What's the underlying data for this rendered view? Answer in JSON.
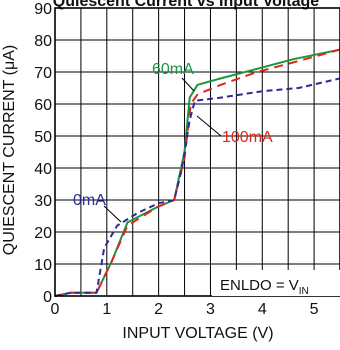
{
  "chart_data": {
    "type": "line",
    "title": "Quiescent Current vs Input Voltage",
    "xlabel": "INPUT VOLTAGE (V)",
    "ylabel": "QUIESCENT CURRENT (μA)",
    "xlim": [
      0,
      5.5
    ],
    "ylim": [
      0,
      90
    ],
    "xticks": [
      0,
      1,
      2,
      3,
      4,
      5
    ],
    "yticks": [
      0,
      10,
      20,
      30,
      40,
      50,
      60,
      70,
      80,
      90
    ],
    "grid": true,
    "condition": {
      "text": "ENLDO = V",
      "subscript": "IN"
    },
    "series": [
      {
        "name": "60mA",
        "color": "#1a9641",
        "dash": "solid",
        "points": [
          [
            0,
            0
          ],
          [
            0.3,
            1
          ],
          [
            0.8,
            1
          ],
          [
            1.1,
            11
          ],
          [
            1.4,
            23
          ],
          [
            2.0,
            28
          ],
          [
            2.3,
            30
          ],
          [
            2.5,
            45
          ],
          [
            2.6,
            62
          ],
          [
            2.75,
            66
          ],
          [
            3.2,
            68
          ],
          [
            3.9,
            71
          ],
          [
            4.6,
            74
          ],
          [
            5.5,
            77
          ]
        ]
      },
      {
        "name": "100mA",
        "color": "#e0271c",
        "dash": "long",
        "points": [
          [
            0,
            0
          ],
          [
            0.3,
            1
          ],
          [
            0.8,
            1
          ],
          [
            1.1,
            11
          ],
          [
            1.4,
            22
          ],
          [
            2.0,
            28
          ],
          [
            2.3,
            30
          ],
          [
            2.5,
            43
          ],
          [
            2.62,
            60
          ],
          [
            2.75,
            63
          ],
          [
            3.2,
            66
          ],
          [
            3.9,
            70
          ],
          [
            4.6,
            73
          ],
          [
            5.5,
            77
          ]
        ]
      },
      {
        "name": "0mA",
        "color": "#2b2b9a",
        "dash": "short",
        "points": [
          [
            0,
            0
          ],
          [
            0.3,
            1
          ],
          [
            0.8,
            1
          ],
          [
            0.95,
            15
          ],
          [
            1.2,
            22
          ],
          [
            1.6,
            26
          ],
          [
            2.0,
            29
          ],
          [
            2.3,
            30
          ],
          [
            2.45,
            40
          ],
          [
            2.6,
            55
          ],
          [
            2.7,
            61
          ],
          [
            3.2,
            62
          ],
          [
            4.0,
            64
          ],
          [
            4.7,
            65
          ],
          [
            5.5,
            68
          ]
        ]
      }
    ]
  }
}
